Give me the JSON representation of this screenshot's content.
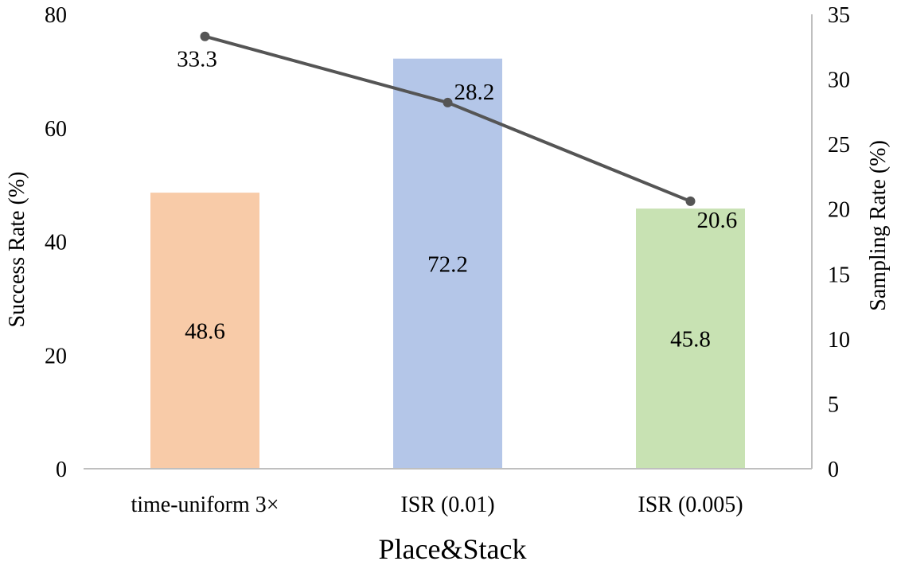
{
  "chart_data": {
    "type": "bar+line",
    "title": "",
    "xlabel": "Place&Stack",
    "categories": [
      "time-uniform 3×",
      "ISR (0.01)",
      "ISR (0.005)"
    ],
    "y_left": {
      "label": "Success Rate (%)",
      "range": [
        0,
        80
      ],
      "ticks": [
        "0",
        "20",
        "40",
        "60",
        "80"
      ]
    },
    "y_right": {
      "label": "Sampling Rate (%)",
      "range": [
        0,
        35
      ],
      "ticks": [
        "0",
        "5",
        "10",
        "15",
        "20",
        "25",
        "30",
        "35"
      ]
    },
    "bars": {
      "axis": "left",
      "values": [
        48.6,
        72.2,
        45.8
      ],
      "labels": [
        "48.6",
        "72.2",
        "45.8"
      ],
      "colors": [
        "#f8cba8",
        "#b4c6e8",
        "#c8e2b3"
      ]
    },
    "line": {
      "axis": "right",
      "values": [
        33.3,
        28.2,
        20.6
      ],
      "labels": [
        "33.3",
        "28.2",
        "20.6"
      ],
      "color": "#555555"
    },
    "grid": false,
    "legend": "none"
  }
}
